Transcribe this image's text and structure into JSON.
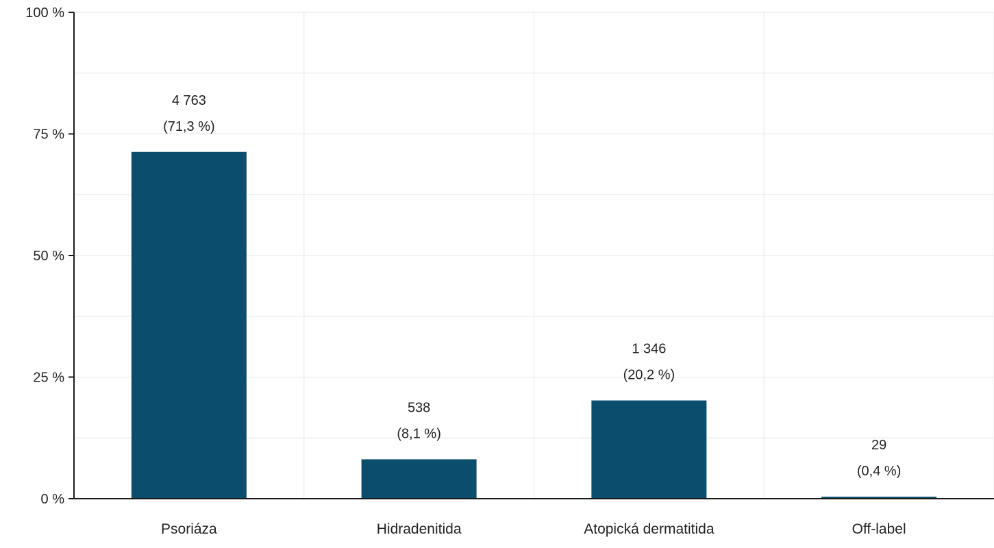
{
  "colors": {
    "bar": "#0b4d6d",
    "grid": "#e6e6e6",
    "axis": "#1a1a1a"
  },
  "chart_data": {
    "type": "bar",
    "categories": [
      "Psoriáza",
      "Hidradenitida",
      "Atopická dermatitida",
      "Off-label"
    ],
    "values": [
      71.3,
      8.1,
      20.2,
      0.4
    ],
    "counts": [
      "4 763",
      "538",
      "1 346",
      "29"
    ],
    "percent_labels": [
      "(71,3 %)",
      "(8,1 %)",
      "(20,2 %)",
      "(0,4 %)"
    ],
    "yticks": [
      {
        "value": 0,
        "label": "0 %"
      },
      {
        "value": 25,
        "label": "25 %"
      },
      {
        "value": 50,
        "label": "50 %"
      },
      {
        "value": 75,
        "label": "75 %"
      },
      {
        "value": 100,
        "label": "100 %"
      }
    ],
    "ylim": [
      0,
      100
    ],
    "title": "",
    "xlabel": "",
    "ylabel": "",
    "grid": true,
    "legend": "none"
  }
}
